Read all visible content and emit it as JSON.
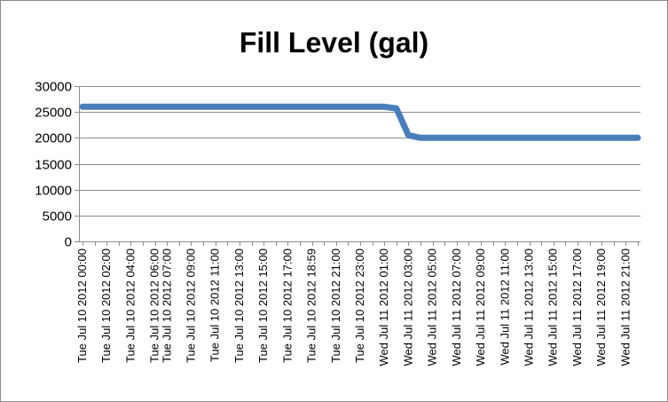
{
  "chart_data": {
    "type": "line",
    "title": "Fill Level (gal)",
    "xlabel": "",
    "ylabel": "",
    "ylim": [
      0,
      30000
    ],
    "yticks": [
      0,
      5000,
      10000,
      15000,
      20000,
      25000,
      30000
    ],
    "grid": "horizontal",
    "legend": "none",
    "categories": [
      "Tue Jul 10 2012 00:00",
      "Tue Jul 10 2012 02:00",
      "Tue Jul 10 2012 04:00",
      "Tue Jul 10 2012 06:00",
      "Tue Jul 10 2012 07:00",
      "Tue Jul 10 2012 09:00",
      "Tue Jul 10 2012 11:00",
      "Tue Jul 10 2012 13:00",
      "Tue Jul 10 2012 15:00",
      "Tue Jul 10 2012 17:00",
      "Tue Jul 10 2012 18:59",
      "Tue Jul 10 2012 21:00",
      "Tue Jul 10 2012 23:00",
      "Wed Jul 11 2012 01:00",
      "Wed Jul 11 2012 03:00",
      "Wed Jul 11 2012 05:00",
      "Wed Jul 11 2012 07:00",
      "Wed Jul 11 2012 09:00",
      "Wed Jul 11 2012 11:00",
      "Wed Jul 11 2012 13:00",
      "Wed Jul 11 2012 15:00",
      "Wed Jul 11 2012 17:00",
      "Wed Jul 11 2012 19:00",
      "Wed Jul 11 2012 21:00"
    ],
    "series": [
      {
        "x": [
          "Tue Jul 10 2012 00:00",
          "Tue Jul 10 2012 01:00",
          "Tue Jul 10 2012 02:00",
          "Tue Jul 10 2012 03:00",
          "Tue Jul 10 2012 04:00",
          "Tue Jul 10 2012 05:00",
          "Tue Jul 10 2012 06:00",
          "Tue Jul 10 2012 06:30",
          "Tue Jul 10 2012 07:00",
          "Tue Jul 10 2012 08:00",
          "Tue Jul 10 2012 09:00",
          "Tue Jul 10 2012 10:00",
          "Tue Jul 10 2012 11:00",
          "Tue Jul 10 2012 12:00",
          "Tue Jul 10 2012 13:00",
          "Tue Jul 10 2012 14:00",
          "Tue Jul 10 2012 15:00",
          "Tue Jul 10 2012 16:00",
          "Tue Jul 10 2012 17:00",
          "Tue Jul 10 2012 18:00",
          "Tue Jul 10 2012 18:59",
          "Tue Jul 10 2012 20:00",
          "Tue Jul 10 2012 21:00",
          "Tue Jul 10 2012 22:00",
          "Tue Jul 10 2012 23:00",
          "Wed Jul 11 2012 00:00",
          "Wed Jul 11 2012 01:00",
          "Wed Jul 11 2012 02:00",
          "Wed Jul 11 2012 03:00",
          "Wed Jul 11 2012 04:00",
          "Wed Jul 11 2012 05:00",
          "Wed Jul 11 2012 06:00",
          "Wed Jul 11 2012 07:00",
          "Wed Jul 11 2012 08:00",
          "Wed Jul 11 2012 09:00",
          "Wed Jul 11 2012 10:00",
          "Wed Jul 11 2012 11:00",
          "Wed Jul 11 2012 12:00",
          "Wed Jul 11 2012 13:00",
          "Wed Jul 11 2012 14:00",
          "Wed Jul 11 2012 15:00",
          "Wed Jul 11 2012 16:00",
          "Wed Jul 11 2012 17:00",
          "Wed Jul 11 2012 18:00",
          "Wed Jul 11 2012 19:00",
          "Wed Jul 11 2012 20:00",
          "Wed Jul 11 2012 21:00",
          "Wed Jul 11 2012 22:00"
        ],
        "values": [
          26000,
          26000,
          26000,
          26000,
          26000,
          26000,
          26000,
          26000,
          26000,
          26000,
          26000,
          26000,
          26000,
          26000,
          26000,
          26000,
          26000,
          26000,
          26000,
          26000,
          26000,
          26000,
          26000,
          26000,
          26000,
          26000,
          26000,
          25700,
          20500,
          20000,
          20000,
          20000,
          20000,
          20000,
          20000,
          20000,
          20000,
          20000,
          20000,
          20000,
          20000,
          20000,
          20000,
          20000,
          20000,
          20000,
          20000,
          20000
        ]
      }
    ],
    "colors": {
      "line": "#4a7ebb",
      "grid": "#8c8c8c",
      "axis": "#8c8c8c",
      "frame": "#8c8c8c"
    }
  }
}
